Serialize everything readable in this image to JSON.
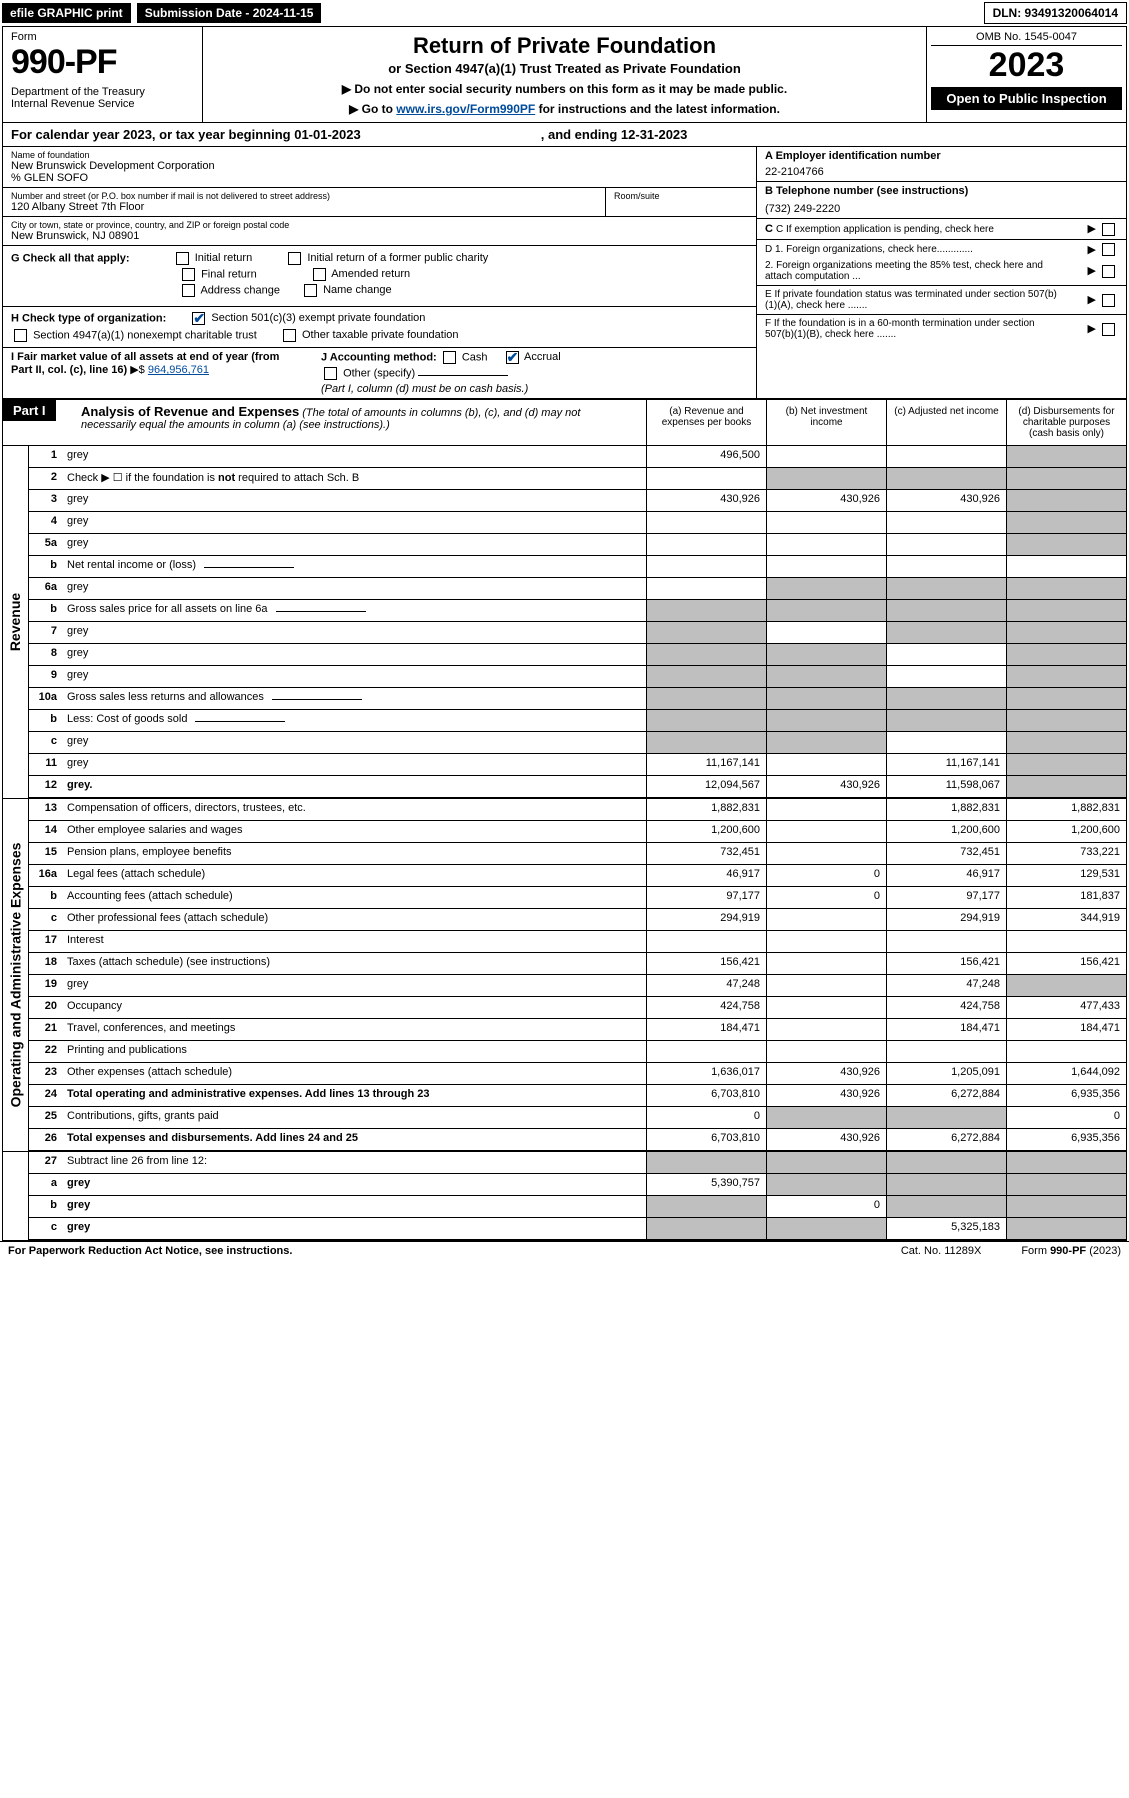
{
  "topbar": {
    "efile": "efile GRAPHIC print",
    "sub_date": "Submission Date - 2024-11-15",
    "dln": "DLN: 93491320064014"
  },
  "header": {
    "form_label": "Form",
    "form_num": "990-PF",
    "dept": "Department of the Treasury\nInternal Revenue Service",
    "title": "Return of Private Foundation",
    "sub1": "or Section 4947(a)(1) Trust Treated as Private Foundation",
    "sub2a": "▶ Do not enter social security numbers on this form as it may be made public.",
    "sub2b_pre": "▶ Go to ",
    "sub2b_link": "www.irs.gov/Form990PF",
    "sub2b_post": " for instructions and the latest information.",
    "omb": "OMB No. 1545-0047",
    "year": "2023",
    "open": "Open to Public Inspection"
  },
  "cal": {
    "text": "For calendar year 2023, or tax year beginning 01-01-2023",
    "ending": ", and ending 12-31-2023"
  },
  "info": {
    "name_label": "Name of foundation",
    "name": "New Brunswick Development Corporation",
    "care_of": "% GLEN SOFO",
    "street_label": "Number and street (or P.O. box number if mail is not delivered to street address)",
    "street": "120 Albany Street 7th Floor",
    "room_label": "Room/suite",
    "room": "",
    "city_label": "City or town, state or province, country, and ZIP or foreign postal code",
    "city": "New Brunswick, NJ  08901",
    "ein_label": "A Employer identification number",
    "ein": "22-2104766",
    "tel_label": "B Telephone number (see instructions)",
    "tel": "(732) 249-2220",
    "c": "C If exemption application is pending, check here",
    "d1": "D 1. Foreign organizations, check here.............",
    "d2": "2. Foreign organizations meeting the 85% test, check here and attach computation ...",
    "e": "E  If private foundation status was terminated under section 507(b)(1)(A), check here .......",
    "f": "F  If the foundation is in a 60-month termination under section 507(b)(1)(B), check here .......",
    "g_label": "G Check all that apply:",
    "g_items": [
      "Initial return",
      "Initial return of a former public charity",
      "Final return",
      "Amended return",
      "Address change",
      "Name change"
    ],
    "h_label": "H Check type of organization:",
    "h1": "Section 501(c)(3) exempt private foundation",
    "h2": "Section 4947(a)(1) nonexempt charitable trust",
    "h3": "Other taxable private foundation",
    "i_label": "I Fair market value of all assets at end of year (from Part II, col. (c), line 16)",
    "i_amt": "964,956,761",
    "j_label": "J Accounting method:",
    "j_cash": "Cash",
    "j_accrual": "Accrual",
    "j_other": "Other (specify)",
    "j_note": "(Part I, column (d) must be on cash basis.)"
  },
  "part1": {
    "label": "Part I",
    "title": "Analysis of Revenue and Expenses",
    "note": "(The total of amounts in columns (b), (c), and (d) may not necessarily equal the amounts in column (a) (see instructions).)",
    "col_a": "(a)   Revenue and expenses per books",
    "col_b": "(b)   Net investment income",
    "col_c": "(c)   Adjusted net income",
    "col_d": "(d)   Disbursements for charitable purposes (cash basis only)"
  },
  "rows": {
    "r1": {
      "n": "1",
      "d": "grey",
      "a": "496,500",
      "b": "",
      "c": ""
    },
    "r2": {
      "n": "2",
      "d": "Check ▶ ☐ if the foundation is not required to attach Sch. B",
      "nocols": true
    },
    "r3": {
      "n": "3",
      "d": "grey",
      "a": "430,926",
      "b": "430,926",
      "c": "430,926"
    },
    "r4": {
      "n": "4",
      "d": "grey",
      "a": "",
      "b": "",
      "c": ""
    },
    "r5a": {
      "n": "5a",
      "d": "grey",
      "a": "",
      "b": "",
      "c": ""
    },
    "r5b": {
      "n": "b",
      "d": "Net rental income or (loss)",
      "short": true
    },
    "r6a": {
      "n": "6a",
      "d": "grey",
      "a": "",
      "bgrey": true,
      "cgrey": true
    },
    "r6b": {
      "n": "b",
      "d": "Gross sales price for all assets on line 6a",
      "short": true,
      "allgrey": true
    },
    "r7": {
      "n": "7",
      "d": "grey",
      "agrey": true,
      "b": "",
      "cgrey": true
    },
    "r8": {
      "n": "8",
      "d": "grey",
      "agrey": true,
      "bgrey": true,
      "c": ""
    },
    "r9": {
      "n": "9",
      "d": "grey",
      "agrey": true,
      "bgrey": true,
      "c": ""
    },
    "r10a": {
      "n": "10a",
      "d": "Gross sales less returns and allowances",
      "short": true,
      "allgrey": true
    },
    "r10b": {
      "n": "b",
      "d": "Less: Cost of goods sold",
      "short": true,
      "allgrey": true
    },
    "r10c": {
      "n": "c",
      "d": "grey",
      "agrey": true,
      "bgrey": true,
      "c": ""
    },
    "r11": {
      "n": "11",
      "d": "grey",
      "a": "11,167,141",
      "b": "",
      "c": "11,167,141"
    },
    "r12": {
      "n": "12",
      "d": "grey",
      "a": "12,094,567",
      "b": "430,926",
      "c": "11,598,067",
      "bold": true
    },
    "r13": {
      "n": "13",
      "d": "Compensation of officers, directors, trustees, etc.",
      "a": "1,882,831",
      "b": "",
      "c": "1,882,831",
      "dv": "1,882,831"
    },
    "r14": {
      "n": "14",
      "d": "Other employee salaries and wages",
      "a": "1,200,600",
      "b": "",
      "c": "1,200,600",
      "dv": "1,200,600"
    },
    "r15": {
      "n": "15",
      "d": "Pension plans, employee benefits",
      "a": "732,451",
      "b": "",
      "c": "732,451",
      "dv": "733,221"
    },
    "r16a": {
      "n": "16a",
      "d": "Legal fees (attach schedule)",
      "a": "46,917",
      "b": "0",
      "c": "46,917",
      "dv": "129,531"
    },
    "r16b": {
      "n": "b",
      "d": "Accounting fees (attach schedule)",
      "a": "97,177",
      "b": "0",
      "c": "97,177",
      "dv": "181,837"
    },
    "r16c": {
      "n": "c",
      "d": "Other professional fees (attach schedule)",
      "a": "294,919",
      "b": "",
      "c": "294,919",
      "dv": "344,919"
    },
    "r17": {
      "n": "17",
      "d": "Interest",
      "a": "",
      "b": "",
      "c": "",
      "dv": ""
    },
    "r18": {
      "n": "18",
      "d": "Taxes (attach schedule) (see instructions)",
      "a": "156,421",
      "b": "",
      "c": "156,421",
      "dv": "156,421"
    },
    "r19": {
      "n": "19",
      "d": "grey",
      "a": "47,248",
      "b": "",
      "c": "47,248"
    },
    "r20": {
      "n": "20",
      "d": "Occupancy",
      "a": "424,758",
      "b": "",
      "c": "424,758",
      "dv": "477,433"
    },
    "r21": {
      "n": "21",
      "d": "Travel, conferences, and meetings",
      "a": "184,471",
      "b": "",
      "c": "184,471",
      "dv": "184,471"
    },
    "r22": {
      "n": "22",
      "d": "Printing and publications",
      "a": "",
      "b": "",
      "c": "",
      "dv": ""
    },
    "r23": {
      "n": "23",
      "d": "Other expenses (attach schedule)",
      "a": "1,636,017",
      "b": "430,926",
      "c": "1,205,091",
      "dv": "1,644,092"
    },
    "r24": {
      "n": "24",
      "d": "Total operating and administrative expenses. Add lines 13 through 23",
      "a": "6,703,810",
      "b": "430,926",
      "c": "6,272,884",
      "dv": "6,935,356",
      "bold": true
    },
    "r25": {
      "n": "25",
      "d": "Contributions, gifts, grants paid",
      "a": "0",
      "bgrey": true,
      "cgrey": true,
      "dv": "0"
    },
    "r26": {
      "n": "26",
      "d": "Total expenses and disbursements. Add lines 24 and 25",
      "a": "6,703,810",
      "b": "430,926",
      "c": "6,272,884",
      "dv": "6,935,356",
      "bold": true
    },
    "r27": {
      "n": "27",
      "d": "Subtract line 26 from line 12:",
      "allgrey4": true
    },
    "r27a": {
      "n": "a",
      "d": "grey",
      "a": "5,390,757",
      "bgrey": true,
      "cgrey": true,
      "bold": true
    },
    "r27b": {
      "n": "b",
      "d": "grey",
      "agrey": true,
      "b": "0",
      "cgrey": true,
      "bold": true
    },
    "r27c": {
      "n": "c",
      "d": "grey",
      "agrey": true,
      "bgrey": true,
      "c": "5,325,183",
      "bold": true
    }
  },
  "footer": {
    "left": "For Paperwork Reduction Act Notice, see instructions.",
    "mid": "Cat. No. 11289X",
    "right": "Form 990-PF (2023)"
  }
}
